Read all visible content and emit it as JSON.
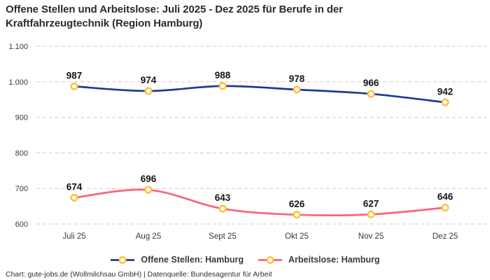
{
  "chart_data": {
    "type": "line",
    "title": "Offene Stellen und Arbeitslose: Juli 2025 - Dez 2025 für Berufe in der Kraftfahrzeugtechnik (Region Hamburg)",
    "categories": [
      "Juli 25",
      "Aug 25",
      "Sept 25",
      "Okt 25",
      "Nov 25",
      "Dez 25"
    ],
    "series": [
      {
        "name": "Offene Stellen: Hamburg",
        "values": [
          987,
          974,
          988,
          978,
          966,
          942
        ],
        "color": "#1e3a96"
      },
      {
        "name": "Arbeitslose: Hamburg",
        "values": [
          674,
          696,
          643,
          626,
          627,
          646
        ],
        "color": "#fa627f"
      }
    ],
    "ylim": [
      600,
      1100
    ],
    "yticks": [
      600,
      700,
      800,
      900,
      1000,
      1100
    ],
    "ytick_labels": [
      "600",
      "700",
      "800",
      "900",
      "1.000",
      "1.100"
    ],
    "grid": true,
    "grid_style": "dashed",
    "grid_color": "#cccccc",
    "marker_color": "#fcc233",
    "marker_fill": "#ffffff",
    "data_labels": true,
    "legend_position": "bottom",
    "xlabel": "",
    "ylabel": ""
  },
  "footer": {
    "credit": "Chart: gute-jobs.de (Wollmilchsau GmbH) | Datenquelle: Bundesagentur für Arbeit"
  }
}
